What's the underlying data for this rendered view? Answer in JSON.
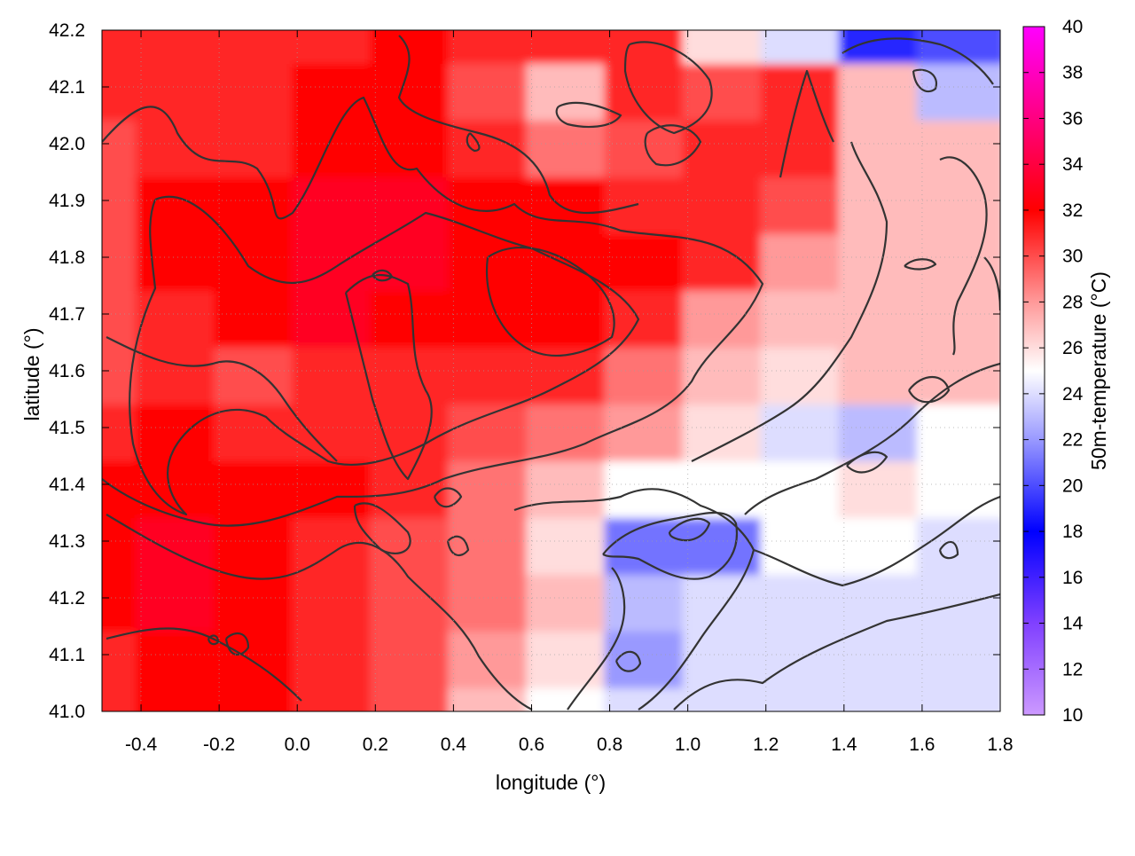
{
  "chart_data": {
    "type": "heatmap",
    "xlabel": "longitude (°)",
    "ylabel": "latitude (°)",
    "colorbar_label": "50m-temperature (°C)",
    "xlim": [
      -0.5,
      1.8
    ],
    "ylim": [
      41.0,
      42.2
    ],
    "x_ticks": [
      -0.4,
      -0.2,
      0.0,
      0.2,
      0.4,
      0.6,
      0.8,
      1.0,
      1.2,
      1.4,
      1.6,
      1.8
    ],
    "x_tick_labels": [
      "-0.4",
      "-0.2",
      "0.0",
      "0.2",
      "0.4",
      "0.6",
      "0.8",
      "1.0",
      "1.2",
      "1.4",
      "1.6",
      "1.8"
    ],
    "y_ticks": [
      41.0,
      41.1,
      41.2,
      41.3,
      41.4,
      41.5,
      41.6,
      41.7,
      41.8,
      41.9,
      42.0,
      42.1,
      42.2
    ],
    "y_tick_labels": [
      "41.0",
      "41.1",
      "41.2",
      "41.3",
      "41.4",
      "41.5",
      "41.6",
      "41.7",
      "41.8",
      "41.9",
      "42.0",
      "42.1",
      "42.2"
    ],
    "colorbar_range": [
      10,
      40
    ],
    "colorbar_ticks": [
      10,
      12,
      14,
      16,
      18,
      20,
      22,
      24,
      26,
      28,
      30,
      32,
      34,
      36,
      38,
      40
    ],
    "colorbar_tick_labels": [
      "10",
      "12",
      "14",
      "16",
      "18",
      "20",
      "22",
      "24",
      "26",
      "28",
      "30",
      "32",
      "34",
      "36",
      "38",
      "40"
    ],
    "colormap": [
      {
        "value": 10,
        "color": "#cc99ff"
      },
      {
        "value": 14,
        "color": "#8040ff"
      },
      {
        "value": 18,
        "color": "#0000ff"
      },
      {
        "value": 22,
        "color": "#9999ff"
      },
      {
        "value": 25,
        "color": "#ffffff"
      },
      {
        "value": 28,
        "color": "#ff9999"
      },
      {
        "value": 32,
        "color": "#ff0000"
      },
      {
        "value": 36,
        "color": "#ff0080"
      },
      {
        "value": 40,
        "color": "#ff00ff"
      }
    ],
    "grid": true,
    "contour_levels_note_hidden": false,
    "field_samples": {
      "lon": [
        -0.5,
        -0.3,
        -0.1,
        0.1,
        0.3,
        0.5,
        0.7,
        0.9,
        1.1,
        1.3,
        1.5,
        1.7
      ],
      "lat": [
        41.0,
        41.1,
        41.2,
        41.3,
        41.4,
        41.5,
        41.6,
        41.7,
        41.8,
        41.9,
        42.0,
        42.1,
        42.2
      ],
      "temperature": [
        [
          31,
          32,
          32,
          31,
          30,
          27,
          25,
          24,
          24,
          24,
          24,
          24
        ],
        [
          31,
          32,
          32,
          31,
          30,
          28,
          26,
          22,
          24,
          24,
          24,
          24
        ],
        [
          32,
          33,
          32,
          31,
          30,
          29,
          27,
          23,
          24,
          24,
          24,
          24
        ],
        [
          32,
          33,
          32,
          31,
          30,
          29,
          26,
          21,
          21,
          25,
          25,
          24
        ],
        [
          32,
          32,
          32,
          32,
          31,
          29,
          27,
          25,
          25,
          25,
          26,
          25
        ],
        [
          31,
          32,
          31,
          31,
          31,
          30,
          29,
          28,
          26,
          24,
          23,
          25
        ],
        [
          30,
          31,
          30,
          31,
          31,
          31,
          31,
          29,
          27,
          26,
          27,
          27
        ],
        [
          30,
          31,
          32,
          33,
          32,
          32,
          32,
          31,
          28,
          27,
          27,
          27
        ],
        [
          30,
          32,
          32,
          33,
          33,
          32,
          32,
          32,
          31,
          28,
          27,
          27
        ],
        [
          30,
          32,
          32,
          33,
          33,
          32,
          32,
          31,
          31,
          30,
          27,
          27
        ],
        [
          30,
          31,
          31,
          32,
          32,
          31,
          29,
          30,
          31,
          31,
          27,
          27
        ],
        [
          31,
          31,
          31,
          32,
          32,
          30,
          27,
          31,
          30,
          31,
          27,
          23
        ],
        [
          31,
          31,
          31,
          31,
          32,
          31,
          31,
          31,
          26,
          24,
          19,
          20
        ]
      ]
    }
  }
}
